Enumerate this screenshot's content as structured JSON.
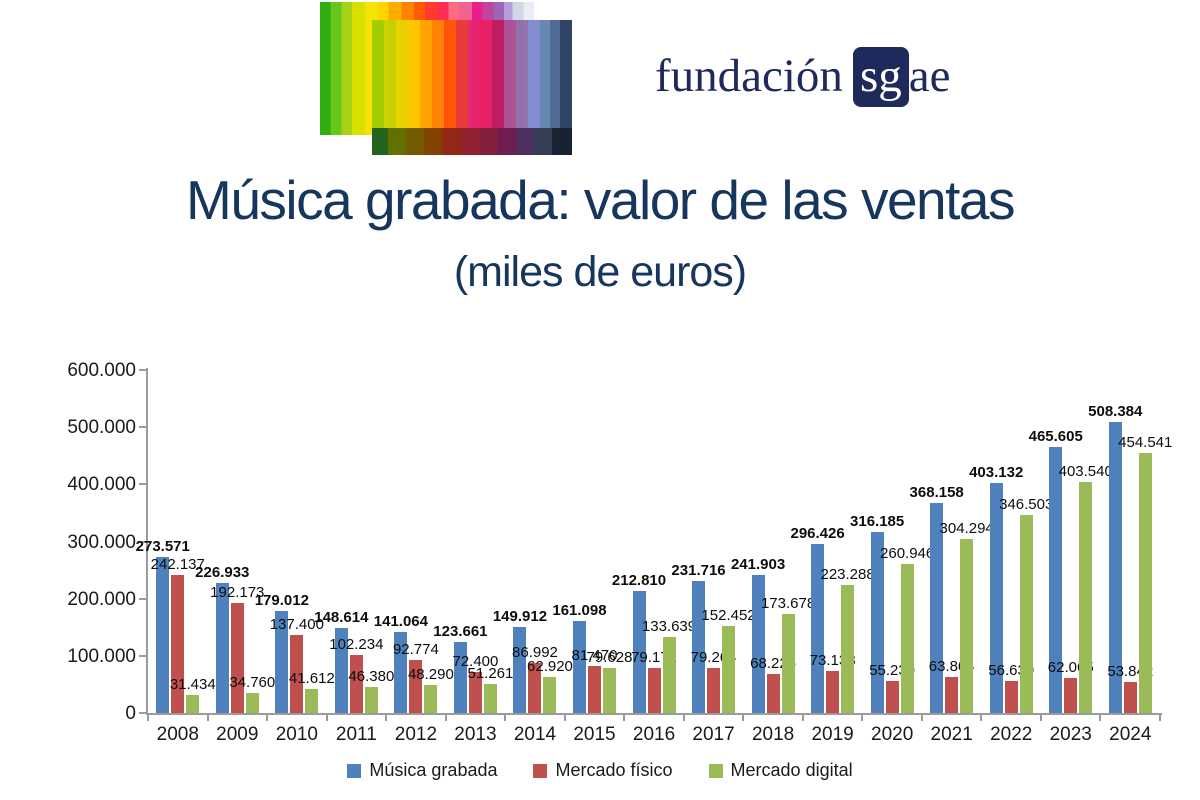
{
  "header": {
    "wordmark": {
      "prefix": "fundación",
      "boxed": "sg",
      "suffix": "ae",
      "color": "#1f2a5c"
    },
    "logo_icon": "sgae-color-stripes"
  },
  "title": {
    "main": "Música grabada: valor de las ventas",
    "subtitle": "(miles de euros)",
    "color": "#17365d"
  },
  "chart_data": {
    "type": "bar",
    "title": "Música grabada: valor de las ventas",
    "subtitle": "(miles de euros)",
    "unit": "miles de euros",
    "grid": false,
    "legend_position": "bottom",
    "ylim": [
      0,
      600000
    ],
    "y_tick_step": 100000,
    "y_tick_labels": [
      "0",
      "100.000",
      "200.000",
      "300.000",
      "400.000",
      "500.000",
      "600.000"
    ],
    "number_format": "thousands-dot",
    "categories": [
      "2008",
      "2009",
      "2010",
      "2011",
      "2012",
      "2013",
      "2014",
      "2015",
      "2016",
      "2017",
      "2018",
      "2019",
      "2020",
      "2021",
      "2022",
      "2023",
      "2024"
    ],
    "series": [
      {
        "name": "Música grabada",
        "color": "#4f81bd",
        "bold_labels": true,
        "values": [
          273571,
          226933,
          179012,
          148614,
          141064,
          123661,
          149912,
          161098,
          212810,
          231716,
          241903,
          296426,
          316185,
          368158,
          403132,
          465605,
          508384
        ]
      },
      {
        "name": "Mercado físico",
        "color": "#c0504d",
        "bold_labels": false,
        "values": [
          242137,
          192173,
          137400,
          102234,
          92774,
          72400,
          86992,
          81470,
          79171,
          79264,
          68225,
          73138,
          55239,
          63864,
          56630,
          62065,
          53842
        ]
      },
      {
        "name": "Mercado digital",
        "color": "#9bbb59",
        "bold_labels": false,
        "values": [
          31434,
          34760,
          41612,
          46380,
          48290,
          51261,
          62920,
          79628,
          133639,
          152452,
          173678,
          223288,
          260946,
          304294,
          346503,
          403540,
          454541
        ]
      }
    ]
  }
}
